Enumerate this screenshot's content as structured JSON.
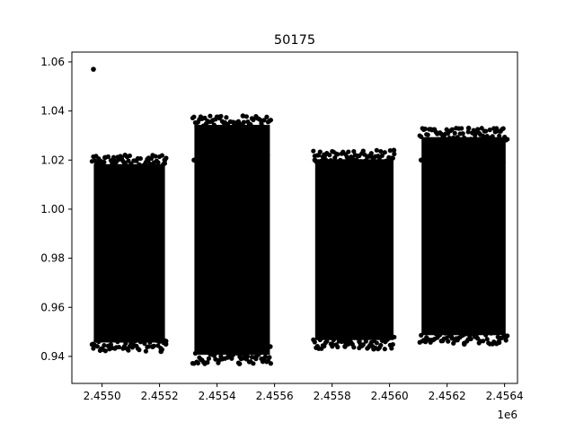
{
  "chart_data": {
    "type": "scatter",
    "title": "50175",
    "xlabel": "",
    "ylabel": "",
    "x_offset_label": "1e6",
    "xlim": [
      2454895,
      2456445
    ],
    "ylim": [
      0.929,
      1.064
    ],
    "x_ticks": [
      2455000,
      2455200,
      2455400,
      2455600,
      2455800,
      2456000,
      2456200,
      2456400
    ],
    "x_tick_labels": [
      "2.4550",
      "2.4552",
      "2.4554",
      "2.4556",
      "2.4558",
      "2.4560",
      "2.4562",
      "2.4564"
    ],
    "y_ticks": [
      0.94,
      0.96,
      0.98,
      1.0,
      1.02,
      1.04,
      1.06
    ],
    "y_tick_labels": [
      "0.94",
      "0.96",
      "0.98",
      "1.00",
      "1.02",
      "1.04",
      "1.06"
    ],
    "grid": false,
    "marker_color": "#000000",
    "series": [
      {
        "points": [
          [
            2454970,
            1.057
          ],
          [
            2454968,
            0.945
          ],
          [
            2454980,
            1.018
          ],
          [
            2454990,
            0.952
          ],
          [
            2455010,
            1.021
          ],
          [
            2455030,
            0.948
          ],
          [
            2455045,
            1.019
          ],
          [
            2455060,
            0.955
          ],
          [
            2455080,
            1.022
          ],
          [
            2455100,
            0.95
          ],
          [
            2455120,
            1.017
          ],
          [
            2455140,
            0.947
          ],
          [
            2455160,
            1.02
          ],
          [
            2455175,
            0.944
          ],
          [
            2455190,
            1.016
          ],
          [
            2455205,
            0.942
          ],
          [
            2455218,
            1.02
          ],
          [
            2455222,
            0.945
          ],
          [
            2455320,
            1.02
          ],
          [
            2455335,
            0.955
          ],
          [
            2455350,
            1.03
          ],
          [
            2455365,
            0.948
          ],
          [
            2455385,
            1.033
          ],
          [
            2455405,
            0.942
          ],
          [
            2455420,
            1.032
          ],
          [
            2455440,
            0.94
          ],
          [
            2455460,
            1.034
          ],
          [
            2455478,
            0.937
          ],
          [
            2455490,
            1.038
          ],
          [
            2455505,
            0.94
          ],
          [
            2455515,
            1.03
          ],
          [
            2455530,
            0.945
          ],
          [
            2455545,
            1.02
          ],
          [
            2455560,
            0.938
          ],
          [
            2455575,
            1.022
          ],
          [
            2455585,
            0.944
          ],
          [
            2455740,
            1.02
          ],
          [
            2455755,
            0.948
          ],
          [
            2455775,
            1.022
          ],
          [
            2455800,
            0.945
          ],
          [
            2455820,
            1.018
          ],
          [
            2455845,
            0.944
          ],
          [
            2455870,
            1.02
          ],
          [
            2455895,
            0.946
          ],
          [
            2455920,
            1.019
          ],
          [
            2455945,
            0.943
          ],
          [
            2455965,
            1.018
          ],
          [
            2455985,
            0.946
          ],
          [
            2456000,
            1.02
          ],
          [
            2456010,
            0.948
          ],
          [
            2456015,
            1.024
          ],
          [
            2456110,
            1.02
          ],
          [
            2456125,
            0.946
          ],
          [
            2456145,
            1.018
          ],
          [
            2456170,
            0.95
          ],
          [
            2456190,
            1.022
          ],
          [
            2456215,
            0.948
          ],
          [
            2456235,
            1.028
          ],
          [
            2456260,
            0.945
          ],
          [
            2456275,
            1.033
          ],
          [
            2456300,
            0.948
          ],
          [
            2456320,
            1.027
          ],
          [
            2456340,
            0.95
          ],
          [
            2456360,
            1.022
          ],
          [
            2456380,
            0.946
          ],
          [
            2456395,
            1.019
          ],
          [
            2456405,
            0.948
          ]
        ]
      }
    ],
    "segments": [
      {
        "x_start": 2454965,
        "x_end": 2455225,
        "y_low": 0.942,
        "y_high": 1.022
      },
      {
        "x_start": 2455315,
        "x_end": 2455590,
        "y_low": 0.937,
        "y_high": 1.038
      },
      {
        "x_start": 2455735,
        "x_end": 2456020,
        "y_low": 0.943,
        "y_high": 1.024
      },
      {
        "x_start": 2456105,
        "x_end": 2456410,
        "y_low": 0.945,
        "y_high": 1.033
      }
    ]
  }
}
